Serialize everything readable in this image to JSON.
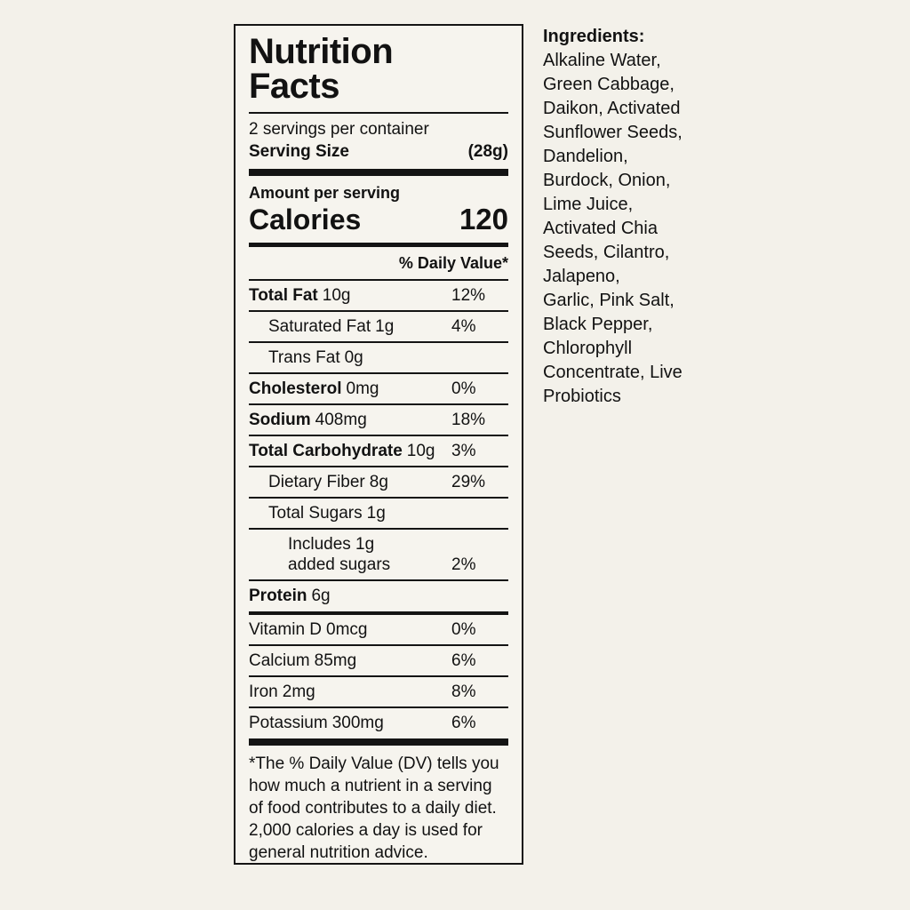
{
  "label": {
    "title_line1": "Nutrition",
    "title_line2": "Facts",
    "servings_per_container": "2 servings per container",
    "serving_size_label": "Serving Size",
    "serving_size_value": "(28g)",
    "amount_per_serving": "Amount per serving",
    "calories_label": "Calories",
    "calories_value": "120",
    "daily_value_header": "% Daily Value*",
    "rows": [
      {
        "name": "Total Fat",
        "amount": "10g",
        "dv": "12%"
      },
      {
        "name": "Saturated Fat",
        "amount": "1g",
        "dv": "4%"
      },
      {
        "name": "Trans Fat",
        "amount": "0g",
        "dv": ""
      },
      {
        "name": "Cholesterol",
        "amount": "0mg",
        "dv": "0%"
      },
      {
        "name": "Sodium",
        "amount": "408mg",
        "dv": "18%"
      },
      {
        "name": "Total Carbohydrate",
        "amount": "10g",
        "dv": "3%"
      },
      {
        "name": "Dietary Fiber",
        "amount": "8g",
        "dv": "29%"
      },
      {
        "name": "Total Sugars",
        "amount": "1g",
        "dv": ""
      },
      {
        "name": "Includes 1g\nadded sugars",
        "amount": "",
        "dv": "2%"
      },
      {
        "name": "Protein",
        "amount": "6g",
        "dv": ""
      },
      {
        "name": "Vitamin D",
        "amount": "0mcg",
        "dv": "0%"
      },
      {
        "name": "Calcium",
        "amount": "85mg",
        "dv": "6%"
      },
      {
        "name": "Iron",
        "amount": "2mg",
        "dv": "8%"
      },
      {
        "name": "Potassium",
        "amount": "300mg",
        "dv": "6%"
      }
    ],
    "footnote": "*The % Daily Value (DV) tells you\nhow much a nutrient in a serving\nof food contributes to a daily diet.\n2,000 calories a day is used for\ngeneral nutrition advice."
  },
  "ingredients": {
    "heading": "Ingredients:",
    "text": "Alkaline Water,\nGreen Cabbage,\nDaikon, Activated\nSunflower Seeds,\nDandelion,\nBurdock, Onion,\nLime Juice,\nActivated Chia\nSeeds, Cilantro,\nJalapeno,\nGarlic, Pink Salt,\nBlack Pepper,\nChlorophyll\nConcentrate, Live\nProbiotics"
  },
  "colors": {
    "page_background": "#f3f1ea",
    "panel_background": "#f6f4ee",
    "text": "#121212",
    "border": "#141414"
  }
}
